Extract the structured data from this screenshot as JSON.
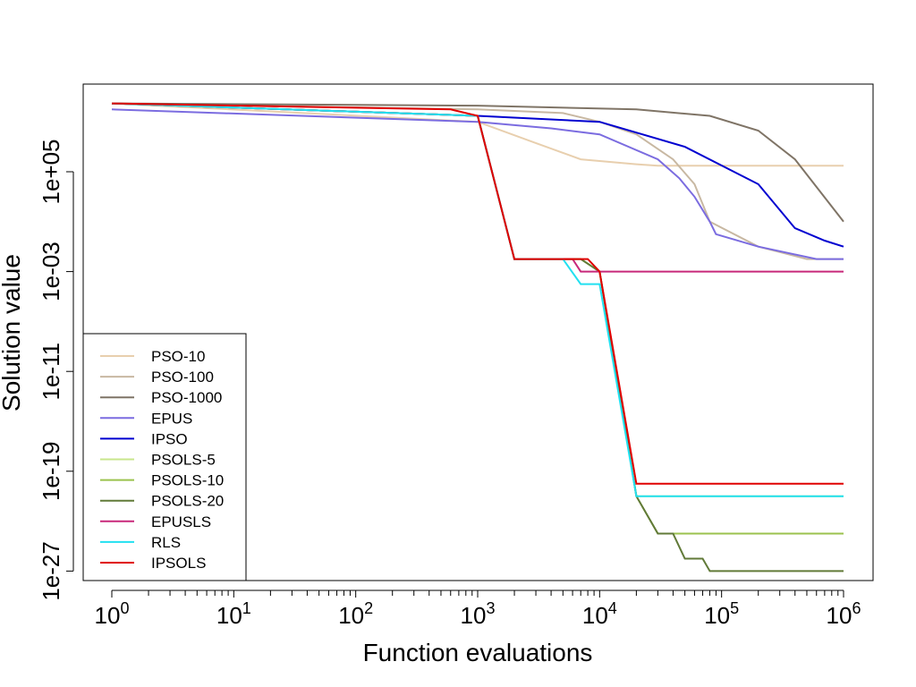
{
  "chart_data": {
    "type": "line",
    "title": "",
    "xlabel": "Function evaluations",
    "ylabel": "Solution value",
    "x_scale": "log10",
    "y_scale": "log10",
    "xlim": [
      1,
      1000000
    ],
    "ylim": [
      1e-28,
      1000000000000.0
    ],
    "x_ticks": [
      {
        "value": 1,
        "base": "10",
        "exp": "0"
      },
      {
        "value": 10,
        "base": "10",
        "exp": "1"
      },
      {
        "value": 100,
        "base": "10",
        "exp": "2"
      },
      {
        "value": 1000,
        "base": "10",
        "exp": "3"
      },
      {
        "value": 10000,
        "base": "10",
        "exp": "4"
      },
      {
        "value": 100000,
        "base": "10",
        "exp": "5"
      },
      {
        "value": 1000000,
        "base": "10",
        "exp": "6"
      }
    ],
    "y_ticks": [
      {
        "value": 100000.0,
        "label": "1e+05"
      },
      {
        "value": 0.001,
        "label": "1e-03"
      },
      {
        "value": 1e-11,
        "label": "1e-11"
      },
      {
        "value": 1e-19,
        "label": "1e-19"
      },
      {
        "value": 1e-27,
        "label": "1e-27"
      }
    ],
    "grid": false,
    "legend_position": "bottom-left",
    "series": [
      {
        "name": "PSO-10",
        "color": "#E8CFAE",
        "x": [
          1,
          1000,
          3000,
          7000,
          20000,
          30000,
          1000000
        ],
        "y": [
          30000000000.0,
          1000000000.0,
          20000000.0,
          1000000.0,
          400000.0,
          300000.0,
          300000.0
        ]
      },
      {
        "name": "PSO-100",
        "color": "#C8B8A2",
        "x": [
          1,
          1000,
          5000,
          10000,
          20000,
          40000,
          60000,
          80000,
          200000,
          500000,
          1000000
        ],
        "y": [
          30000000000.0,
          10000000000.0,
          5000000000.0,
          1000000000.0,
          100000000.0,
          1000000.0,
          10000.0,
          10.0,
          0.1,
          0.01,
          0.01
        ]
      },
      {
        "name": "PSO-1000",
        "color": "#7F7466",
        "x": [
          1,
          1000,
          20000,
          80000,
          200000,
          400000,
          1000000
        ],
        "y": [
          30000000000.0,
          20000000000.0,
          10000000000.0,
          3000000000.0,
          200000000.0,
          1000000.0,
          10.0
        ]
      },
      {
        "name": "EPUS",
        "color": "#7B6CE0",
        "x": [
          1,
          1000,
          4000,
          10000,
          30000,
          45000,
          60000,
          80000,
          90000,
          200000,
          600000,
          1000000
        ],
        "y": [
          10000000000.0,
          1000000000.0,
          300000000.0,
          100000000.0,
          1000000.0,
          30000.0,
          1000.0,
          10.0,
          1.0,
          0.1,
          0.01,
          0.01
        ]
      },
      {
        "name": "IPSO",
        "color": "#0000D0",
        "x": [
          1,
          1000,
          10000,
          50000,
          200000,
          400000,
          700000,
          1000000
        ],
        "y": [
          30000000000.0,
          3000000000.0,
          1000000000.0,
          10000000.0,
          10000.0,
          3.0,
          0.3,
          0.1
        ]
      },
      {
        "name": "PSOLS-5",
        "color": "#C8E68C",
        "x": [
          1,
          1000,
          2000,
          5000,
          7000,
          10000,
          20000,
          1000000
        ],
        "y": [
          30000000000.0,
          3000000000.0,
          0.01,
          0.01,
          0.01,
          0.001,
          1e-21,
          1e-21
        ]
      },
      {
        "name": "PSOLS-10",
        "color": "#9BC24E",
        "x": [
          1,
          1000,
          2000,
          5000,
          7000,
          10000,
          20000,
          30000,
          1000000
        ],
        "y": [
          30000000000.0,
          3000000000.0,
          0.01,
          0.01,
          0.01,
          0.001,
          1e-21,
          1e-24,
          1e-24
        ]
      },
      {
        "name": "PSOLS-20",
        "color": "#617A38",
        "x": [
          1,
          1000,
          2000,
          5000,
          7000,
          10000,
          20000,
          30000,
          40000,
          50000,
          70000,
          80000,
          1000000
        ],
        "y": [
          30000000000.0,
          3000000000.0,
          0.01,
          0.01,
          0.01,
          0.001,
          1e-21,
          1e-24,
          1e-24,
          1e-26,
          1e-26,
          1e-27,
          1e-27
        ]
      },
      {
        "name": "EPUSLS",
        "color": "#C8287A",
        "x": [
          1,
          1000,
          2000,
          5000,
          6000,
          7000,
          1000000
        ],
        "y": [
          30000000000.0,
          3000000000.0,
          0.01,
          0.01,
          0.01,
          0.001,
          0.001
        ]
      },
      {
        "name": "RLS",
        "color": "#22E0F0",
        "x": [
          1,
          1000,
          2000,
          5000,
          7000,
          10000,
          20000,
          1000000
        ],
        "y": [
          30000000000.0,
          3000000000.0,
          0.01,
          0.01,
          0.0001,
          0.0001,
          1e-21,
          1e-21
        ]
      },
      {
        "name": "IPSOLS",
        "color": "#E00000",
        "x": [
          1,
          600,
          1000,
          2000,
          5000,
          8000,
          10000,
          20000,
          1000000
        ],
        "y": [
          30000000000.0,
          10000000000.0,
          3000000000.0,
          0.01,
          0.01,
          0.01,
          0.001,
          1e-20,
          1e-20
        ]
      }
    ]
  }
}
